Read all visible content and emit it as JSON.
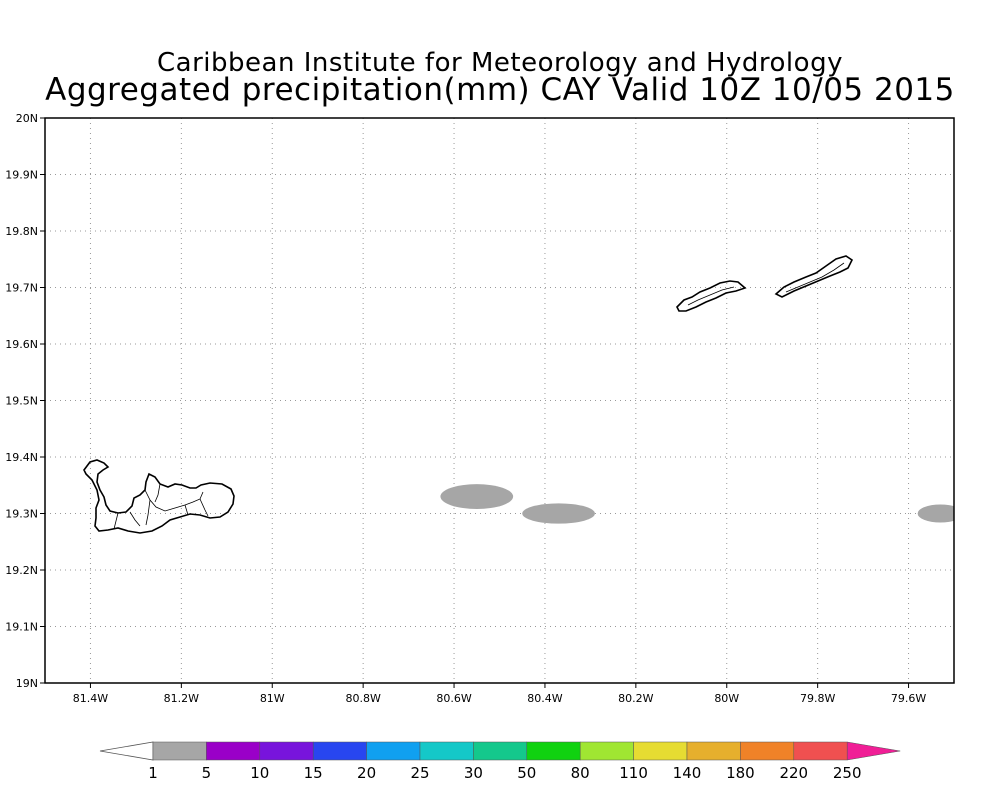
{
  "title_line1": "Caribbean Institute for Meteorology and Hydrology",
  "title_line2": "Aggregated precipitation(mm) CAY Valid 10Z 10/05 2015",
  "map": {
    "lon_range": [
      -81.5,
      -79.5
    ],
    "lat_range": [
      19.0,
      20.0
    ],
    "grid": "dotted",
    "lon_ticks": [
      {
        "lon": -81.4,
        "label": "81.4W"
      },
      {
        "lon": -81.2,
        "label": "81.2W"
      },
      {
        "lon": -81.0,
        "label": "81W"
      },
      {
        "lon": -80.8,
        "label": "80.8W"
      },
      {
        "lon": -80.6,
        "label": "80.6W"
      },
      {
        "lon": -80.4,
        "label": "80.4W"
      },
      {
        "lon": -80.2,
        "label": "80.2W"
      },
      {
        "lon": -80.0,
        "label": "80W"
      },
      {
        "lon": -79.8,
        "label": "79.8W"
      },
      {
        "lon": -79.6,
        "label": "79.6W"
      }
    ],
    "lat_ticks": [
      {
        "lat": 20.0,
        "label": "20N"
      },
      {
        "lat": 19.9,
        "label": "19.9N"
      },
      {
        "lat": 19.8,
        "label": "19.8N"
      },
      {
        "lat": 19.7,
        "label": "19.7N"
      },
      {
        "lat": 19.6,
        "label": "19.6N"
      },
      {
        "lat": 19.5,
        "label": "19.5N"
      },
      {
        "lat": 19.4,
        "label": "19.4N"
      },
      {
        "lat": 19.3,
        "label": "19.3N"
      },
      {
        "lat": 19.2,
        "label": "19.2N"
      },
      {
        "lat": 19.1,
        "label": "19.1N"
      },
      {
        "lat": 19.0,
        "label": "19N"
      }
    ],
    "precip_areas": [
      {
        "center_lon": -80.55,
        "center_lat": 19.33,
        "half_width_deg": 0.08,
        "half_height_deg": 0.022,
        "color": "#a6a6a6"
      },
      {
        "center_lon": -80.37,
        "center_lat": 19.3,
        "half_width_deg": 0.08,
        "half_height_deg": 0.018,
        "color": "#a6a6a6"
      },
      {
        "center_lon": -79.53,
        "center_lat": 19.3,
        "half_width_deg": 0.05,
        "half_height_deg": 0.016,
        "color": "#a6a6a6"
      }
    ]
  },
  "colorbar": {
    "labels": [
      "1",
      "5",
      "10",
      "15",
      "20",
      "25",
      "30",
      "50",
      "80",
      "110",
      "140",
      "180",
      "220",
      "250"
    ],
    "under_color": "#ffffff",
    "colors": [
      "#a6a6a6",
      "#9a00c8",
      "#7814dc",
      "#2846f0",
      "#10a0f0",
      "#14c8c8",
      "#14c88c",
      "#10d210",
      "#a0e632",
      "#e6dc32",
      "#e6af2d",
      "#f08228",
      "#f05050"
    ],
    "over_color": "#f01e96"
  }
}
